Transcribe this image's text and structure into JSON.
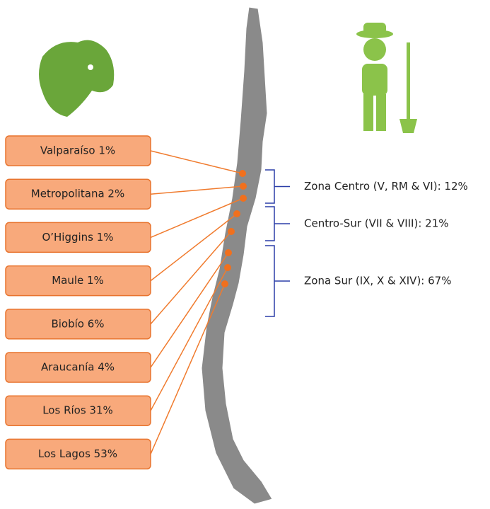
{
  "regions": [
    "Valparaíso 1%",
    "Metropolitana 2%",
    "O’Higgins 1%",
    "Maule 1%",
    "Biobío 6%",
    "Araucanía 4%",
    "Los Ríos 31%",
    "Los Lagos 53%"
  ],
  "zones": [
    "Zona Centro (V, RM & VI): 12%",
    "Centro-Sur (VII & VIII): 21%",
    "Zona Sur (IX, X & XIV): 67%"
  ]
}
